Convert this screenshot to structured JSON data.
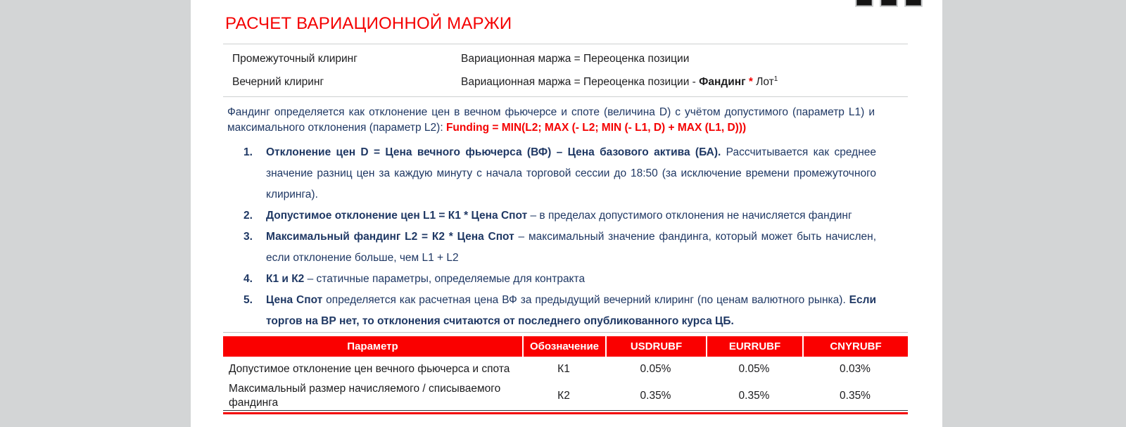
{
  "title": "РАСЧЕТ ВАРИАЦИОННОЙ МАРЖИ",
  "colors": {
    "accent_red": "#f40000",
    "table_header_bg": "#fa0000",
    "body_navy": "#1f3864",
    "page_bg": "#d3d5d6"
  },
  "icons": {
    "top_right": [
      "clipped-toolbar-button",
      "clipped-toolbar-button",
      "clipped-toolbar-button"
    ]
  },
  "clearing": {
    "row1": {
      "label": "Промежуточный клиринг",
      "formula": "Вариационная маржа = Переоценка позиции"
    },
    "row2": {
      "label": "Вечерний клиринг",
      "pre": "Вариационная маржа = Переоценка позиции - ",
      "bold": "Фандинг",
      "star": " * ",
      "unit": "Лот",
      "footnote_marker": "1"
    }
  },
  "intro": {
    "text": "Фандинг определяется как отклонение цен в вечном фьючерсе и споте (величина D) с учётом допустимого (параметр L1) и максимального отклонения (параметр L2): ",
    "formula": "Funding = MIN(L2; MAX (- L2; MIN (- L1, D) + MAX (L1, D)))"
  },
  "list": {
    "items": [
      {
        "num": "1.",
        "bold": "Отклонение цен D = Цена вечного фьючерса (ВФ) – Цена базового актива (БА).",
        "normal": " Рассчитывается как среднее значение разниц цен за каждую минуту с начала торговой сессии до 18:50 (за исключение времени промежуточного клиринга)."
      },
      {
        "num": "2.",
        "bold": "Допустимое отклонение цен L1 = К1 * Цена Спот",
        "normal": " – в пределах допустимого отклонения не начисляется фандинг"
      },
      {
        "num": "3.",
        "bold": "Максимальный фандинг L2 = К2 * Цена Спот",
        "normal": " – максимальный значение фандинга, который может быть начислен, если отклонение больше, чем L1 + L2"
      },
      {
        "num": "4.",
        "bold": "К1 и К2",
        "normal": " – статичные параметры, определяемые для контракта"
      },
      {
        "num": "5.",
        "bold": "Цена Спот",
        "normal": " определяется как расчетная цена ВФ за предыдущий вечерний клиринг (по ценам валютного рынка). ",
        "bold2": "Если торгов на ВР нет, то отклонения считаются от последнего опубликованного курса ЦБ."
      }
    ]
  },
  "params_table": {
    "headers": [
      "Параметр",
      "Обозначение",
      "USDRUBF",
      "EURRUBF",
      "CNYRUBF"
    ],
    "rows": [
      {
        "param": "Допустимое отклонение цен вечного фьючерса и спота",
        "symbol": "К1",
        "usdrubf": "0.05%",
        "eurrubf": "0.05%",
        "cnyrubf": "0.03%"
      },
      {
        "param": "Максимальный размер начисляемого / списываемого фандинга",
        "symbol": "К2",
        "usdrubf": "0.35%",
        "eurrubf": "0.35%",
        "cnyrubf": "0.35%"
      }
    ]
  }
}
